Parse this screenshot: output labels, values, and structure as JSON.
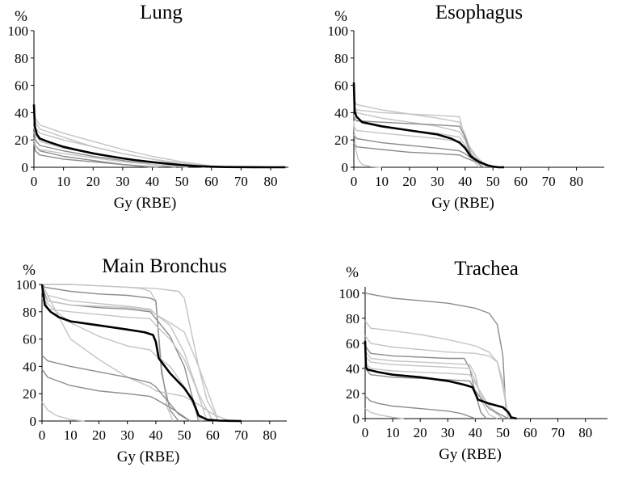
{
  "colors": {
    "median": "#000000",
    "patient_dark": "#8c8c8c",
    "patient_light": "#c4c4c4",
    "axis": "#000000"
  },
  "chart_data": [
    {
      "type": "line",
      "title": "Lung",
      "xlabel": "Gy (RBE)",
      "ylabel": "%",
      "xlim": [
        0,
        86
      ],
      "ylim": [
        0,
        100
      ],
      "xticks": [
        "0",
        "10",
        "20",
        "30",
        "40",
        "50",
        "60",
        "70",
        "80"
      ],
      "yticks": [
        "0",
        "20",
        "40",
        "60",
        "80",
        "100"
      ],
      "median": {
        "name": "median",
        "x": [
          0,
          0.3,
          1,
          2,
          5,
          10,
          15,
          20,
          25,
          30,
          35,
          40,
          45,
          50,
          55,
          60,
          65,
          70,
          75,
          80,
          85
        ],
        "y": [
          46,
          30,
          24,
          21,
          18.5,
          15,
          12.5,
          10.2,
          8.3,
          6.5,
          5,
          3.7,
          2.6,
          1.6,
          0.9,
          0.4,
          0.2,
          0.1,
          0.05,
          0,
          0
        ]
      },
      "patients": [
        {
          "x": [
            0,
            0.5,
            2,
            10,
            20,
            30,
            40,
            50,
            60,
            68
          ],
          "y": [
            42,
            36,
            31,
            25,
            19,
            13,
            8,
            4,
            1,
            0
          ],
          "tone": "light"
        },
        {
          "x": [
            0,
            0.5,
            2,
            10,
            20,
            30,
            40,
            50,
            58
          ],
          "y": [
            38,
            33,
            28,
            22,
            15,
            10,
            6,
            2,
            0
          ],
          "tone": "light"
        },
        {
          "x": [
            0,
            0.5,
            2,
            10,
            20,
            30,
            40,
            50,
            60
          ],
          "y": [
            30,
            24,
            19,
            14,
            10,
            7,
            4,
            2,
            0
          ],
          "tone": "light"
        },
        {
          "x": [
            0,
            0.5,
            2,
            10,
            20,
            30,
            40,
            48
          ],
          "y": [
            26,
            20,
            16,
            12,
            8,
            5,
            2,
            0
          ],
          "tone": "dark"
        },
        {
          "x": [
            0,
            0.5,
            2,
            10,
            20,
            30,
            42
          ],
          "y": [
            22,
            16,
            12,
            8,
            5,
            2,
            0
          ],
          "tone": "dark"
        },
        {
          "x": [
            0,
            0.5,
            2,
            10,
            20,
            30,
            40,
            52
          ],
          "y": [
            20,
            16,
            13,
            10,
            7,
            4,
            2,
            0
          ],
          "tone": "light"
        },
        {
          "x": [
            0,
            0.5,
            2,
            10,
            20,
            30,
            40,
            50,
            62
          ],
          "y": [
            34,
            29,
            25,
            20,
            15,
            10,
            6,
            3,
            0
          ],
          "tone": "light"
        },
        {
          "x": [
            0,
            0.5,
            2,
            10,
            25,
            40
          ],
          "y": [
            18,
            12,
            9,
            6,
            3,
            0
          ],
          "tone": "dark"
        }
      ]
    },
    {
      "type": "line",
      "title": "Esophagus",
      "xlabel": "Gy (RBE)",
      "ylabel": "%",
      "xlim": [
        0,
        90
      ],
      "ylim": [
        0,
        100
      ],
      "xticks": [
        "0",
        "10",
        "20",
        "30",
        "40",
        "50",
        "60",
        "70",
        "80"
      ],
      "yticks": [
        "0",
        "20",
        "40",
        "60",
        "80",
        "100"
      ],
      "median": {
        "name": "median",
        "x": [
          0,
          0.3,
          1,
          3,
          10,
          20,
          30,
          35,
          38,
          40,
          42,
          45,
          48,
          50,
          52,
          54
        ],
        "y": [
          62,
          41,
          37,
          33,
          30,
          27,
          24,
          21,
          18,
          14,
          8,
          4,
          1.5,
          0.5,
          0,
          0
        ]
      },
      "patients": [
        {
          "x": [
            0,
            1,
            10,
            20,
            30,
            38,
            40,
            42,
            45
          ],
          "y": [
            44,
            42,
            40,
            39,
            38,
            37,
            20,
            8,
            0
          ],
          "tone": "light"
        },
        {
          "x": [
            0,
            1,
            10,
            20,
            30,
            38,
            40,
            42,
            46,
            50
          ],
          "y": [
            50,
            46,
            42,
            39,
            36,
            33,
            24,
            12,
            3,
            0
          ],
          "tone": "light"
        },
        {
          "x": [
            0,
            1,
            10,
            20,
            30,
            38,
            40,
            44,
            48
          ],
          "y": [
            46,
            40,
            36,
            33,
            30,
            26,
            20,
            8,
            0
          ],
          "tone": "light"
        },
        {
          "x": [
            0,
            1,
            10,
            20,
            30,
            38,
            40,
            43,
            47
          ],
          "y": [
            38,
            34,
            30,
            27,
            25,
            22,
            16,
            6,
            0
          ],
          "tone": "light"
        },
        {
          "x": [
            0,
            1,
            10,
            20,
            30,
            38,
            40,
            44,
            49
          ],
          "y": [
            30,
            27,
            25,
            23,
            21,
            19,
            14,
            5,
            0
          ],
          "tone": "light"
        },
        {
          "x": [
            0,
            1,
            10,
            20,
            30,
            38,
            40,
            44,
            50
          ],
          "y": [
            24,
            21,
            18,
            16,
            14,
            12,
            10,
            4,
            0
          ],
          "tone": "dark"
        },
        {
          "x": [
            0,
            1,
            10,
            20,
            30,
            38,
            40,
            45,
            52
          ],
          "y": [
            18,
            15,
            13,
            11,
            10,
            9,
            7,
            3,
            0
          ],
          "tone": "dark"
        },
        {
          "x": [
            0,
            0.5,
            1.5,
            3,
            6,
            10
          ],
          "y": [
            34,
            15,
            6,
            2,
            0.5,
            0
          ],
          "tone": "light"
        },
        {
          "x": [
            0,
            1,
            10,
            20,
            30,
            38,
            40,
            42,
            46
          ],
          "y": [
            36,
            34,
            33,
            32,
            31,
            30,
            22,
            10,
            0
          ],
          "tone": "dark"
        }
      ]
    },
    {
      "type": "line",
      "title": "Main Bronchus",
      "xlabel": "Gy (RBE)",
      "ylabel": "%",
      "xlim": [
        0,
        86
      ],
      "ylim": [
        0,
        100
      ],
      "xticks": [
        "0",
        "10",
        "20",
        "30",
        "40",
        "50",
        "60",
        "70",
        "80"
      ],
      "yticks": [
        "0",
        "20",
        "40",
        "60",
        "80",
        "100"
      ],
      "median": {
        "name": "median",
        "x": [
          0,
          1,
          3,
          6,
          10,
          20,
          30,
          36,
          39,
          40,
          41,
          45,
          50,
          53,
          55,
          58,
          62,
          66,
          70
        ],
        "y": [
          100,
          85,
          80,
          76,
          73,
          70,
          67,
          65,
          63,
          58,
          46,
          35,
          24,
          15,
          4,
          1,
          0.3,
          0.1,
          0
        ]
      },
      "patients": [
        {
          "x": [
            0,
            10,
            20,
            30,
            35,
            38,
            40,
            42,
            44,
            46
          ],
          "y": [
            100,
            100,
            99,
            98,
            97,
            95,
            88,
            40,
            10,
            0
          ],
          "tone": "light"
        },
        {
          "x": [
            0,
            1,
            10,
            20,
            30,
            38,
            40,
            42,
            45,
            48
          ],
          "y": [
            100,
            98,
            95,
            93,
            92,
            90,
            88,
            35,
            8,
            0
          ],
          "tone": "dark"
        },
        {
          "x": [
            0,
            2,
            10,
            20,
            30,
            38,
            40,
            45,
            50,
            55,
            60
          ],
          "y": [
            100,
            92,
            88,
            86,
            84,
            82,
            78,
            70,
            50,
            20,
            0
          ],
          "tone": "light"
        },
        {
          "x": [
            0,
            2,
            10,
            20,
            30,
            38,
            40,
            45,
            50,
            55
          ],
          "y": [
            98,
            88,
            85,
            83,
            82,
            80,
            75,
            62,
            40,
            0
          ],
          "tone": "dark"
        },
        {
          "x": [
            0,
            2,
            10,
            20,
            30,
            38,
            40,
            45,
            50,
            54,
            58
          ],
          "y": [
            95,
            82,
            80,
            78,
            76,
            75,
            70,
            60,
            45,
            25,
            0
          ],
          "tone": "light"
        },
        {
          "x": [
            0,
            5,
            10,
            20,
            30,
            38,
            40,
            45,
            50,
            54,
            56
          ],
          "y": [
            90,
            80,
            72,
            62,
            55,
            52,
            48,
            40,
            25,
            8,
            0
          ],
          "tone": "light"
        },
        {
          "x": [
            0,
            2,
            10,
            20,
            30,
            38,
            40,
            45,
            50,
            55,
            58,
            62
          ],
          "y": [
            95,
            88,
            85,
            84,
            83,
            81,
            78,
            72,
            65,
            40,
            15,
            0
          ],
          "tone": "light"
        },
        {
          "x": [
            0,
            5,
            10,
            20,
            30,
            38,
            40,
            45,
            50,
            55,
            60,
            66
          ],
          "y": [
            100,
            80,
            60,
            45,
            32,
            25,
            22,
            20,
            18,
            12,
            5,
            0
          ],
          "tone": "light"
        },
        {
          "x": [
            0,
            2,
            10,
            20,
            30,
            38,
            40,
            44,
            48,
            52
          ],
          "y": [
            48,
            44,
            40,
            36,
            32,
            28,
            25,
            15,
            5,
            0
          ],
          "tone": "dark"
        },
        {
          "x": [
            0,
            2,
            10,
            20,
            30,
            38,
            40,
            45,
            50,
            52
          ],
          "y": [
            38,
            32,
            26,
            22,
            20,
            18,
            16,
            10,
            3,
            0
          ],
          "tone": "dark"
        },
        {
          "x": [
            0,
            2,
            5,
            10,
            15
          ],
          "y": [
            14,
            8,
            4,
            1,
            0
          ],
          "tone": "light"
        },
        {
          "x": [
            0,
            10,
            20,
            30,
            40,
            48,
            50,
            55,
            62
          ],
          "y": [
            100,
            100,
            99,
            98,
            97,
            95,
            90,
            40,
            0
          ],
          "tone": "light"
        }
      ]
    },
    {
      "type": "line",
      "title": "Trachea",
      "xlabel": "Gy (RBE)",
      "ylabel": "%",
      "xlim": [
        0,
        88
      ],
      "ylim": [
        0,
        105
      ],
      "xticks": [
        "0",
        "10",
        "20",
        "30",
        "40",
        "50",
        "60",
        "70",
        "80"
      ],
      "yticks": [
        "0",
        "20",
        "40",
        "60",
        "80",
        "100"
      ],
      "median": {
        "name": "median",
        "x": [
          0,
          0.3,
          1,
          5,
          10,
          20,
          30,
          36,
          39,
          40,
          41,
          45,
          50,
          52,
          53,
          55
        ],
        "y": [
          62,
          41,
          39,
          37,
          35,
          33,
          30,
          27,
          25,
          20,
          15,
          12,
          9,
          5,
          1,
          0
        ]
      },
      "patients": [
        {
          "x": [
            0,
            5,
            10,
            20,
            30,
            40,
            45,
            48,
            50,
            51,
            52
          ],
          "y": [
            100,
            98,
            96,
            94,
            92,
            88,
            84,
            75,
            50,
            10,
            0
          ],
          "tone": "dark"
        },
        {
          "x": [
            0,
            2,
            10,
            20,
            30,
            40,
            45,
            48,
            50,
            52
          ],
          "y": [
            78,
            72,
            70,
            67,
            63,
            58,
            53,
            45,
            25,
            0
          ],
          "tone": "light"
        },
        {
          "x": [
            0,
            2,
            10,
            20,
            30,
            40,
            45,
            48,
            50,
            52
          ],
          "y": [
            66,
            60,
            57,
            55,
            53,
            52,
            50,
            45,
            30,
            0
          ],
          "tone": "light"
        },
        {
          "x": [
            0,
            2,
            10,
            20,
            30,
            36,
            38,
            40,
            42,
            44
          ],
          "y": [
            58,
            52,
            50,
            49,
            48,
            48,
            40,
            20,
            5,
            0
          ],
          "tone": "dark"
        },
        {
          "x": [
            0,
            2,
            10,
            20,
            30,
            38,
            40,
            42,
            45,
            48
          ],
          "y": [
            54,
            48,
            46,
            45,
            44,
            43,
            35,
            15,
            3,
            0
          ],
          "tone": "light"
        },
        {
          "x": [
            0,
            2,
            10,
            20,
            30,
            38,
            40,
            44,
            50
          ],
          "y": [
            50,
            45,
            43,
            42,
            41,
            40,
            30,
            10,
            0
          ],
          "tone": "light"
        },
        {
          "x": [
            0,
            2,
            10,
            20,
            30,
            38,
            40,
            45,
            50
          ],
          "y": [
            44,
            40,
            38,
            37,
            36,
            35,
            28,
            10,
            0
          ],
          "tone": "light"
        },
        {
          "x": [
            0,
            2,
            10,
            20,
            30,
            38,
            40,
            45,
            52
          ],
          "y": [
            40,
            35,
            33,
            32,
            31,
            30,
            22,
            8,
            0
          ],
          "tone": "dark"
        },
        {
          "x": [
            0,
            2,
            5,
            10,
            20,
            30,
            35,
            40
          ],
          "y": [
            18,
            14,
            12,
            10,
            8,
            6,
            4,
            0
          ],
          "tone": "dark"
        },
        {
          "x": [
            0,
            2,
            5,
            10,
            14
          ],
          "y": [
            8,
            5,
            3,
            1,
            0
          ],
          "tone": "light"
        }
      ]
    }
  ]
}
